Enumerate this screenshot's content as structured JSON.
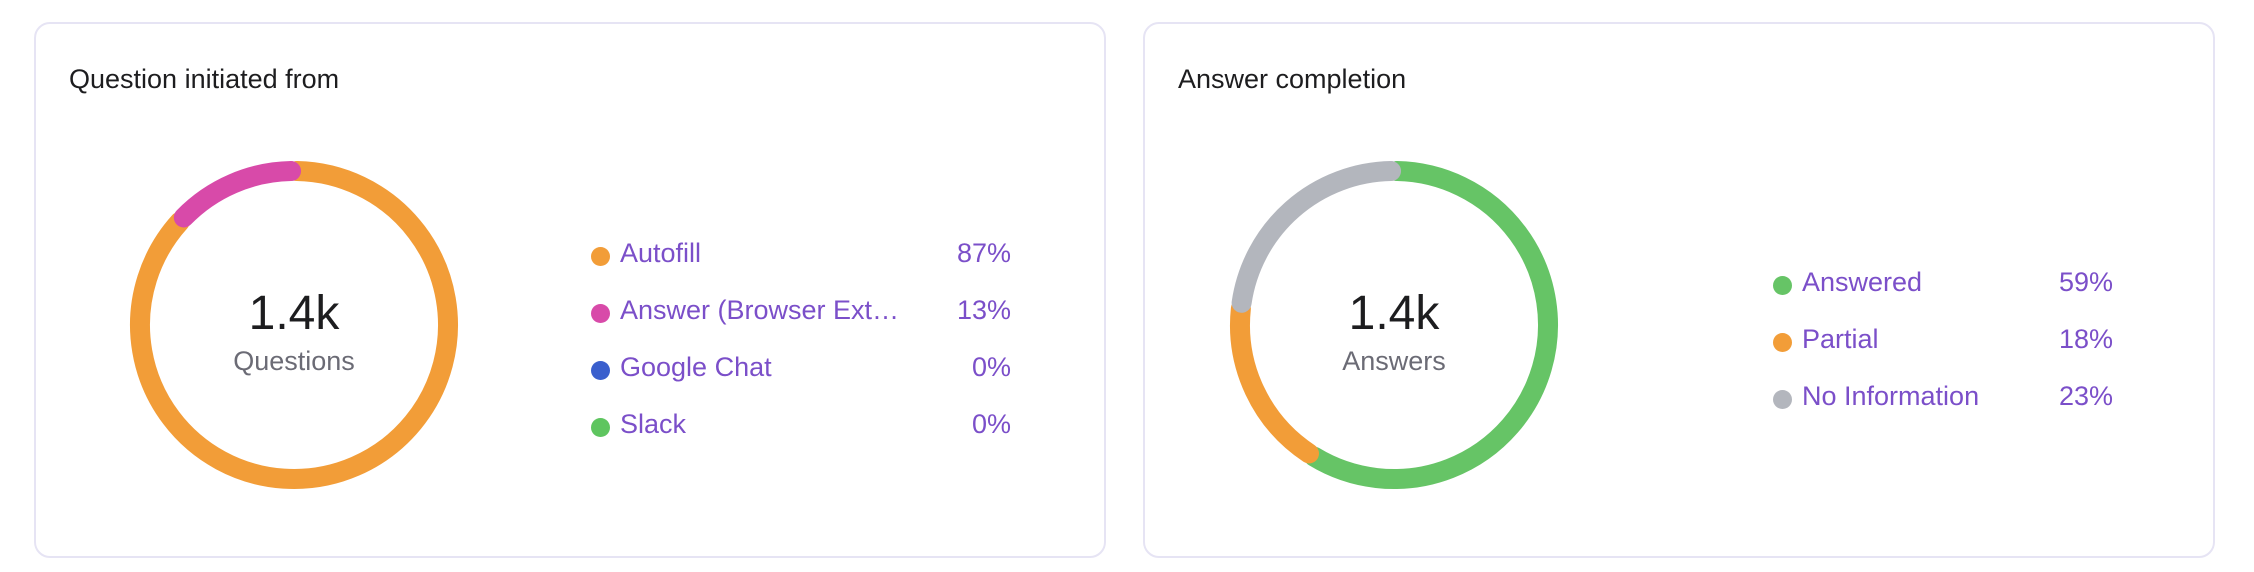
{
  "cards": [
    {
      "title": "Question initiated from",
      "center_value": "1.4k",
      "center_label": "Questions",
      "legend": [
        {
          "label": "Autofill",
          "value": "87%",
          "color": "#f29d38"
        },
        {
          "label": "Answer (Browser Ext…",
          "value": "13%",
          "color": "#d84aa9"
        },
        {
          "label": "Google Chat",
          "value": "0%",
          "color": "#3a5fcd"
        },
        {
          "label": "Slack",
          "value": "0%",
          "color": "#5ec55f"
        }
      ]
    },
    {
      "title": "Answer completion",
      "center_value": "1.4k",
      "center_label": "Answers",
      "legend": [
        {
          "label": "Answered",
          "value": "59%",
          "color": "#66c466"
        },
        {
          "label": "Partial",
          "value": "18%",
          "color": "#f29d38"
        },
        {
          "label": "No Information",
          "value": "23%",
          "color": "#b3b6bd"
        }
      ]
    }
  ],
  "chart_data": [
    {
      "type": "pie",
      "title": "Question initiated from",
      "categories": [
        "Autofill",
        "Answer (Browser Ext…",
        "Google Chat",
        "Slack"
      ],
      "values": [
        87,
        13,
        0,
        0
      ],
      "colors": [
        "#f29d38",
        "#d84aa9",
        "#3a5fcd",
        "#5ec55f"
      ],
      "center_text": "1.4k",
      "center_subtext": "Questions",
      "legend_placement": "right"
    },
    {
      "type": "pie",
      "title": "Answer completion",
      "categories": [
        "Answered",
        "Partial",
        "No Information"
      ],
      "values": [
        59,
        18,
        23
      ],
      "colors": [
        "#66c466",
        "#f29d38",
        "#b3b6bd"
      ],
      "center_text": "1.4k",
      "center_subtext": "Answers",
      "legend_placement": "right"
    }
  ]
}
